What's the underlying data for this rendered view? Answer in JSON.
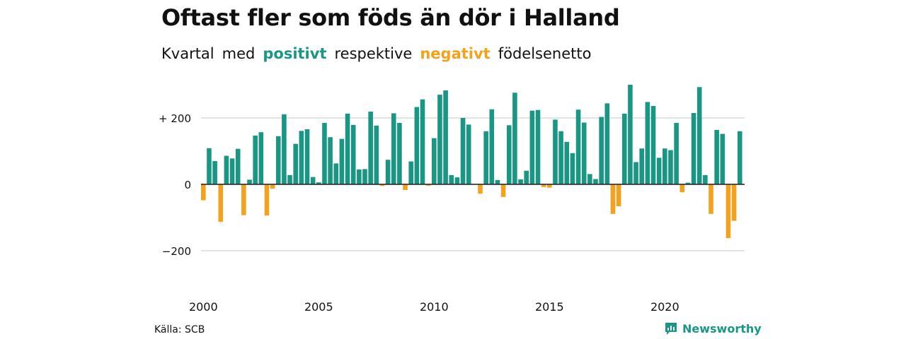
{
  "title": "Oftast fler som föds än dör i Halland",
  "subtitle": {
    "w1": "Kvartal",
    "w2": "med",
    "positive_word": "positivt",
    "w3": "respektive",
    "negative_word": "negativt",
    "w4": "födelsenetto"
  },
  "source": "Källa: SCB",
  "brand": "Newsworthy",
  "colors": {
    "positive": "#1a9784",
    "negative": "#f4a21e",
    "grid": "#e3e3e3"
  },
  "chart_data": {
    "type": "bar",
    "x_tick_labels": [
      "2000",
      "2005",
      "2010",
      "2015",
      "2020"
    ],
    "y_ticks": [
      {
        "value": 200,
        "label": "+ 200"
      },
      {
        "value": 0,
        "label": "0"
      },
      {
        "value": -200,
        "label": "−200"
      }
    ],
    "ylim": [
      -300,
      310
    ],
    "start_year": 2000,
    "values": [
      -48,
      109,
      70,
      -113,
      86,
      78,
      107,
      -93,
      14,
      147,
      157,
      -94,
      -13,
      145,
      211,
      28,
      122,
      161,
      166,
      22,
      6,
      185,
      142,
      63,
      137,
      213,
      179,
      45,
      46,
      219,
      177,
      -5,
      74,
      214,
      185,
      -17,
      69,
      233,
      256,
      -4,
      139,
      270,
      283,
      28,
      21,
      200,
      180,
      0,
      -28,
      160,
      226,
      13,
      -38,
      178,
      276,
      15,
      41,
      222,
      224,
      -8,
      -10,
      195,
      160,
      128,
      94,
      225,
      186,
      31,
      16,
      203,
      244,
      -89,
      -66,
      213,
      300,
      67,
      108,
      248,
      236,
      80,
      108,
      103,
      185,
      -24,
      5,
      215,
      293,
      28,
      -89,
      164,
      152,
      -162,
      -110,
      160
    ]
  }
}
